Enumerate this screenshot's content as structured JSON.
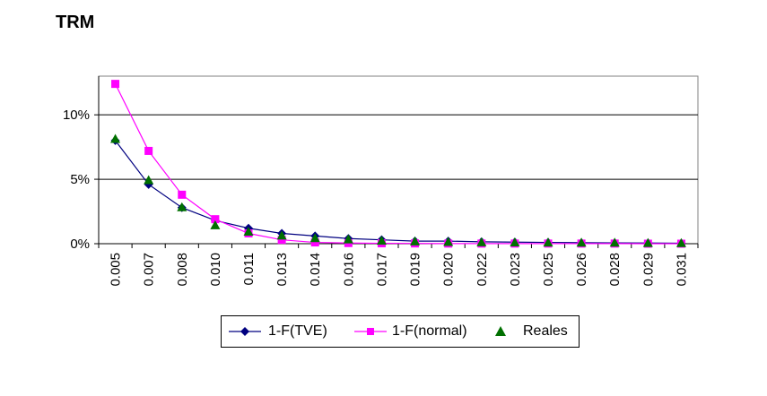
{
  "chart_data": {
    "type": "line",
    "title": "TRM",
    "xlabel": "",
    "ylabel": "",
    "x": [
      "0.005",
      "0.007",
      "0.008",
      "0.010",
      "0.011",
      "0.013",
      "0.014",
      "0.016",
      "0.017",
      "0.019",
      "0.020",
      "0.022",
      "0.023",
      "0.025",
      "0.026",
      "0.028",
      "0.029",
      "0.031"
    ],
    "ylim": [
      0,
      13
    ],
    "yticks": [
      0,
      5,
      10
    ],
    "ytick_labels": [
      "0%",
      "5%",
      "10%"
    ],
    "grid": "horizontal",
    "legend_position": "bottom",
    "series": [
      {
        "name": "1-F(TVE)",
        "color": "#000080",
        "marker": "diamond",
        "values": [
          8.0,
          4.6,
          2.8,
          1.8,
          1.2,
          0.8,
          0.6,
          0.4,
          0.3,
          0.2,
          0.2,
          0.15,
          0.12,
          0.1,
          0.08,
          0.06,
          0.05,
          0.04
        ]
      },
      {
        "name": "1-F(normal)",
        "color": "#FF00FF",
        "marker": "square",
        "values": [
          12.4,
          7.2,
          3.8,
          1.9,
          0.8,
          0.3,
          0.1,
          0.05,
          0.03,
          0.02,
          0.01,
          0.01,
          0.01,
          0.01,
          0.01,
          0.01,
          0.0,
          0.0
        ]
      },
      {
        "name": "Reales",
        "color": "#007000",
        "marker": "triangle",
        "line": false,
        "values": [
          8.1,
          4.9,
          2.8,
          1.4,
          0.9,
          0.6,
          0.4,
          0.3,
          0.2,
          0.15,
          0.1,
          0.08,
          0.07,
          0.06,
          0.05,
          0.05,
          0.03,
          0.02
        ]
      }
    ]
  }
}
